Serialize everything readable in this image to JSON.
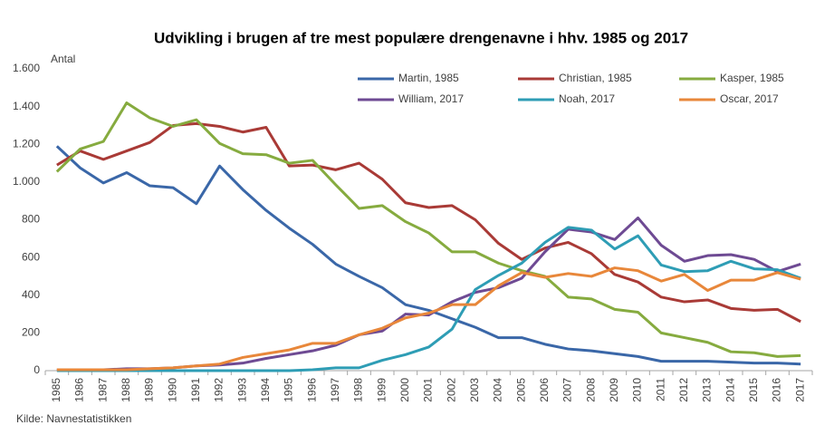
{
  "chart_data": {
    "type": "line",
    "title": "Udvikling i brugen af tre mest populære drengenavne i hhv. 1985 og 2017",
    "y_label": "Antal",
    "source": "Kilde: Navnestatistikken",
    "categories": [
      "1985",
      "1986",
      "1987",
      "1988",
      "1989",
      "1990",
      "1991",
      "1992",
      "1993",
      "1994",
      "1995",
      "1996",
      "1997",
      "1998",
      "1999",
      "2000",
      "2001",
      "2002",
      "2003",
      "2004",
      "2005",
      "2006",
      "2007",
      "2008",
      "2009",
      "2010",
      "2011",
      "2012",
      "2013",
      "2014",
      "2015",
      "2016",
      "2017"
    ],
    "ylim": [
      0,
      1600
    ],
    "yticks": [
      0,
      200,
      400,
      600,
      800,
      {
        "value": 1000,
        "label": "1.000"
      },
      {
        "value": 1200,
        "label": "1.200"
      },
      {
        "value": 1400,
        "label": "1.400"
      },
      {
        "value": 1600,
        "label": "1.600"
      }
    ],
    "grid": false,
    "legend": "top-right",
    "series": [
      {
        "name": "Martin, 1985",
        "color": "#3a67a8",
        "values": [
          1190,
          1075,
          995,
          1050,
          980,
          970,
          885,
          1085,
          960,
          850,
          755,
          670,
          565,
          500,
          440,
          350,
          320,
          275,
          230,
          175,
          175,
          140,
          115,
          105,
          90,
          75,
          50,
          50,
          50,
          45,
          40,
          40,
          35
        ]
      },
      {
        "name": "Christian, 1985",
        "color": "#a93a36",
        "values": [
          1090,
          1165,
          1120,
          1165,
          1210,
          1300,
          1310,
          1295,
          1265,
          1290,
          1085,
          1090,
          1065,
          1100,
          1015,
          890,
          865,
          875,
          800,
          675,
          590,
          650,
          680,
          620,
          510,
          470,
          390,
          365,
          375,
          330,
          320,
          325,
          260
        ]
      },
      {
        "name": "Kasper, 1985",
        "color": "#86ab3f",
        "values": [
          1055,
          1175,
          1215,
          1420,
          1340,
          1295,
          1330,
          1205,
          1150,
          1145,
          1100,
          1115,
          985,
          860,
          875,
          790,
          730,
          630,
          630,
          570,
          530,
          500,
          390,
          380,
          325,
          310,
          200,
          175,
          150,
          100,
          95,
          75,
          80
        ]
      },
      {
        "name": "William, 2017",
        "color": "#6e4a93",
        "values": [
          5,
          5,
          5,
          10,
          10,
          15,
          25,
          30,
          40,
          65,
          85,
          105,
          135,
          190,
          210,
          300,
          295,
          365,
          415,
          440,
          490,
          630,
          750,
          735,
          695,
          810,
          665,
          580,
          610,
          615,
          590,
          525,
          565
        ]
      },
      {
        "name": "Noah, 2017",
        "color": "#2e9db5",
        "values": [
          0,
          0,
          0,
          0,
          0,
          0,
          0,
          0,
          0,
          0,
          0,
          5,
          15,
          15,
          55,
          85,
          125,
          220,
          430,
          505,
          570,
          680,
          760,
          745,
          645,
          715,
          560,
          525,
          530,
          580,
          540,
          535,
          490
        ]
      },
      {
        "name": "Oscar, 2017",
        "color": "#e8873a",
        "values": [
          5,
          5,
          5,
          5,
          10,
          15,
          25,
          35,
          70,
          90,
          110,
          145,
          145,
          190,
          225,
          280,
          305,
          350,
          350,
          450,
          520,
          495,
          515,
          500,
          545,
          530,
          475,
          510,
          425,
          480,
          480,
          520,
          485
        ]
      }
    ]
  }
}
